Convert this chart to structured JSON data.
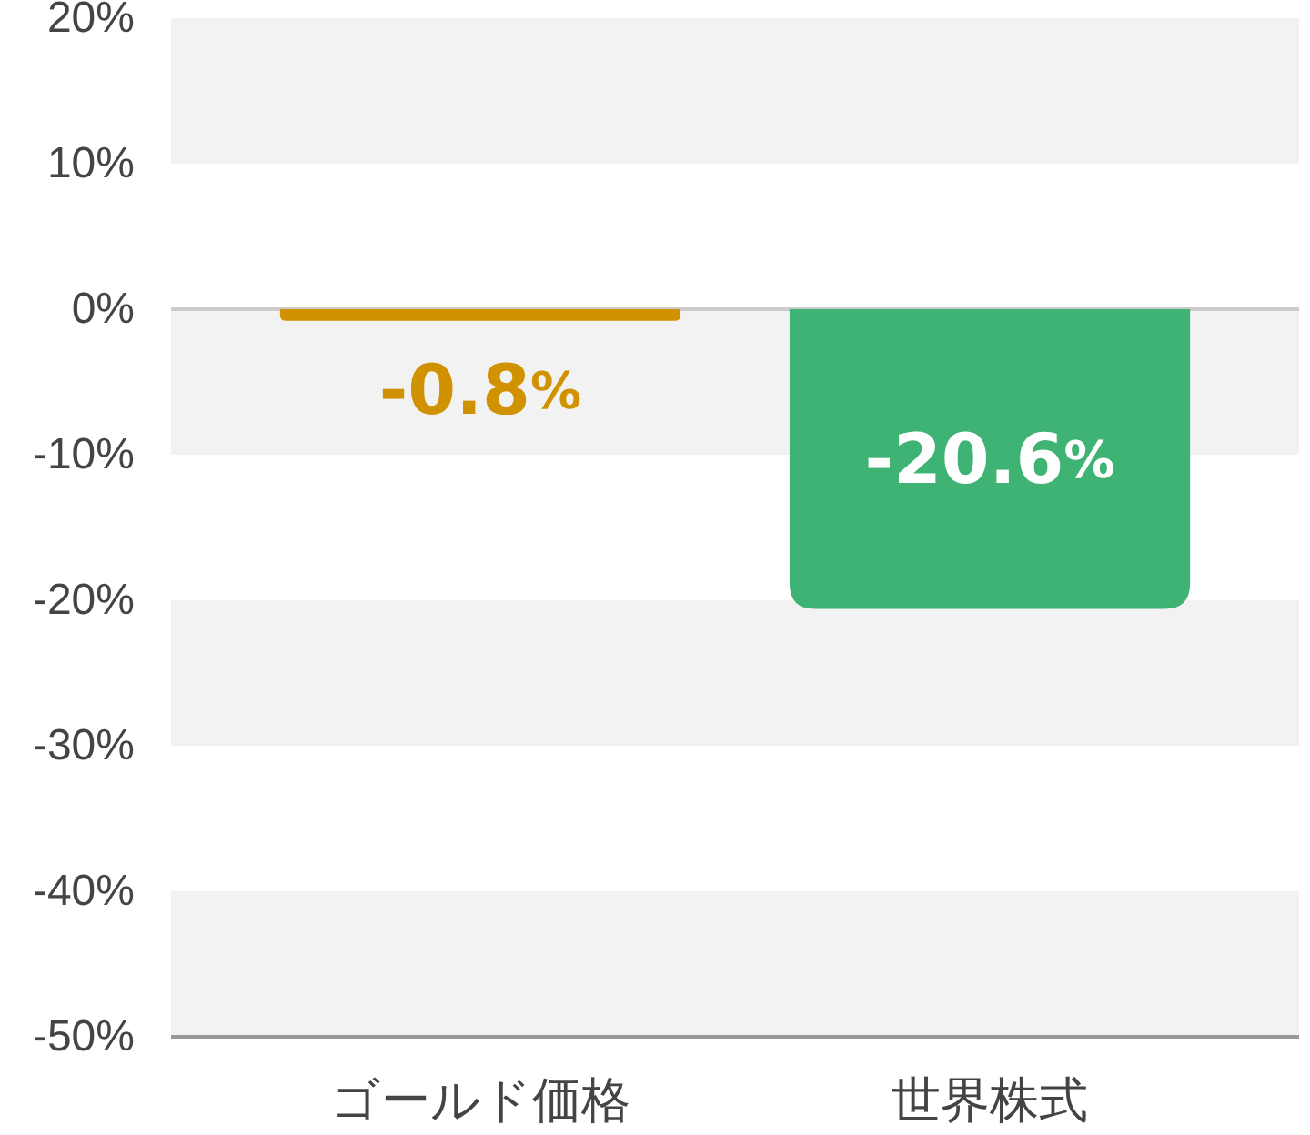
{
  "chart_data": {
    "type": "bar",
    "categories": [
      "ゴールド価格",
      "世界株式"
    ],
    "values": [
      -0.8,
      -20.6
    ],
    "colors": [
      "#d09200",
      "#3fb373"
    ],
    "ylim": [
      -50,
      20
    ],
    "yticks": [
      {
        "value": -50,
        "label": "-50%"
      },
      {
        "value": -40,
        "label": "-40%"
      },
      {
        "value": -30,
        "label": "-30%"
      },
      {
        "value": -20,
        "label": "-20%"
      },
      {
        "value": -10,
        "label": "-10%"
      },
      {
        "value": 0,
        "label": "0%"
      },
      {
        "value": 10,
        "label": "10%"
      },
      {
        "value": 20,
        "label": "20%"
      }
    ],
    "value_labels": [
      "-0.8%",
      "-20.6%"
    ],
    "bands": [
      {
        "axis": "y",
        "from": 10,
        "to": 20,
        "color": "#f2f2f2"
      },
      {
        "axis": "y",
        "from": -10,
        "to": 0,
        "color": "#f2f2f2"
      },
      {
        "axis": "y",
        "from": -30,
        "to": -20,
        "color": "#f2f2f2"
      },
      {
        "axis": "y",
        "from": -50,
        "to": -40,
        "color": "#f2f2f2"
      }
    ],
    "ref_lines": [
      {
        "axis": "y",
        "value": 0,
        "color": "#cccccc"
      }
    ]
  }
}
